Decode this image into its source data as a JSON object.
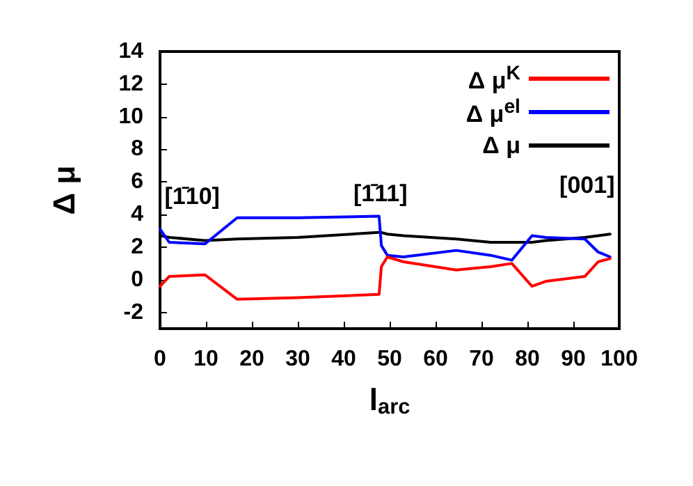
{
  "chart_data": {
    "type": "line",
    "xlabel": "l$_{arc}$",
    "ylabel": "Δ μ",
    "x": [
      0,
      2,
      9.8,
      16.8,
      30,
      47.7,
      48.2,
      49.5,
      53,
      64.5,
      72,
      76.6,
      81,
      84,
      92.5,
      95.4,
      98
    ],
    "series": [
      {
        "name": "Δ μ$^{K}$",
        "color": "#ff0000",
        "values": [
          -0.4,
          0.2,
          0.3,
          -1.2,
          -1.1,
          -0.9,
          0.8,
          1.4,
          1.1,
          0.6,
          0.8,
          1.0,
          -0.4,
          -0.1,
          0.2,
          1.1,
          1.3
        ]
      },
      {
        "name": "Δ μ$^{el}$",
        "color": "#0000ff",
        "values": [
          3.1,
          2.3,
          2.2,
          3.8,
          3.8,
          3.9,
          2.1,
          1.5,
          1.4,
          1.8,
          1.5,
          1.2,
          2.7,
          2.6,
          2.5,
          1.7,
          1.4
        ]
      },
      {
        "name": "Δ μ",
        "color": "#000000",
        "values": [
          2.7,
          2.6,
          2.4,
          2.5,
          2.6,
          2.9,
          2.9,
          2.8,
          2.7,
          2.5,
          2.3,
          2.3,
          2.3,
          2.4,
          2.6,
          2.7,
          2.8
        ]
      }
    ],
    "xlim": [
      0,
      100
    ],
    "xticks": [
      0,
      10,
      20,
      30,
      40,
      50,
      60,
      70,
      80,
      90,
      100
    ],
    "ylim": [
      -3,
      14
    ],
    "yticks": [
      -2,
      0,
      2,
      4,
      6,
      8,
      10,
      12,
      14
    ],
    "annotations": [
      "[1̄10]",
      "[1̄11]",
      "[001]"
    ],
    "legend": "top right",
    "grid": false,
    "marker": "none",
    "line_style": "solid"
  }
}
